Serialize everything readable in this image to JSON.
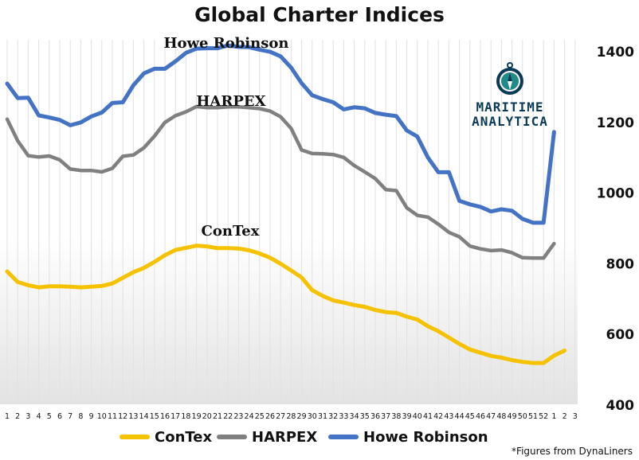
{
  "chart_data": {
    "type": "line",
    "title": "Global Charter Indices",
    "xlabel": "",
    "ylabel": "",
    "x": [
      "1",
      "2",
      "3",
      "4",
      "5",
      "6",
      "7",
      "8",
      "9",
      "10",
      "11",
      "12",
      "13",
      "14",
      "15",
      "16",
      "17",
      "18",
      "19",
      "20",
      "21",
      "22",
      "23",
      "24",
      "25",
      "26",
      "27",
      "28",
      "29",
      "30",
      "31",
      "32",
      "33",
      "34",
      "35",
      "36",
      "37",
      "38",
      "39",
      "40",
      "41",
      "42",
      "43",
      "44",
      "45",
      "46",
      "47",
      "48",
      "49",
      "50",
      "51",
      "52",
      "1",
      "2",
      "3"
    ],
    "ylim": [
      400,
      1450
    ],
    "yticks": [
      400,
      600,
      800,
      1000,
      1200,
      1400
    ],
    "grid": "vertical",
    "legend_position": "bottom",
    "series": [
      {
        "name": "ConTex",
        "color": "#f5c200",
        "annotation": "ConTex",
        "values": [
          776,
          746,
          737,
          731,
          734,
          734,
          733,
          731,
          733,
          735,
          742,
          758,
          774,
          786,
          803,
          822,
          837,
          843,
          849,
          847,
          842,
          842,
          841,
          836,
          827,
          815,
          798,
          779,
          759,
          723,
          707,
          694,
          688,
          681,
          676,
          667,
          661,
          659,
          648,
          640,
          621,
          607,
          589,
          571,
          555,
          546,
          537,
          532,
          525,
          520,
          517,
          517,
          538,
          552,
          null
        ]
      },
      {
        "name": "HARPEX",
        "color": "#808080",
        "annotation": "HARPEX",
        "values": [
          1207,
          1146,
          1104,
          1100,
          1103,
          1092,
          1066,
          1062,
          1062,
          1058,
          1068,
          1102,
          1106,
          1126,
          1159,
          1198,
          1217,
          1228,
          1243,
          1240,
          1240,
          1242,
          1242,
          1240,
          1237,
          1230,
          1214,
          1181,
          1120,
          1110,
          1109,
          1107,
          1099,
          1076,
          1058,
          1039,
          1008,
          1005,
          956,
          935,
          930,
          910,
          887,
          874,
          848,
          840,
          835,
          837,
          829,
          815,
          814,
          814,
          855,
          null,
          null
        ]
      },
      {
        "name": "Howe Robinson",
        "color": "#4472c4",
        "annotation": "Howe Robinson",
        "values": [
          1308,
          1267,
          1268,
          1218,
          1212,
          1205,
          1190,
          1198,
          1215,
          1226,
          1253,
          1255,
          1303,
          1337,
          1350,
          1350,
          1371,
          1395,
          1407,
          1408,
          1408,
          1416,
          1412,
          1411,
          1404,
          1398,
          1385,
          1353,
          1309,
          1275,
          1264,
          1255,
          1235,
          1241,
          1238,
          1225,
          1220,
          1216,
          1175,
          1158,
          1099,
          1057,
          1057,
          976,
          966,
          959,
          946,
          952,
          948,
          925,
          914,
          914,
          1171,
          null,
          null
        ]
      }
    ]
  },
  "logo": {
    "line1": "MARITIME",
    "line2": "ANALYTICA",
    "icon": "compass-icon"
  },
  "footnote": "*Figures from DynaLiners"
}
